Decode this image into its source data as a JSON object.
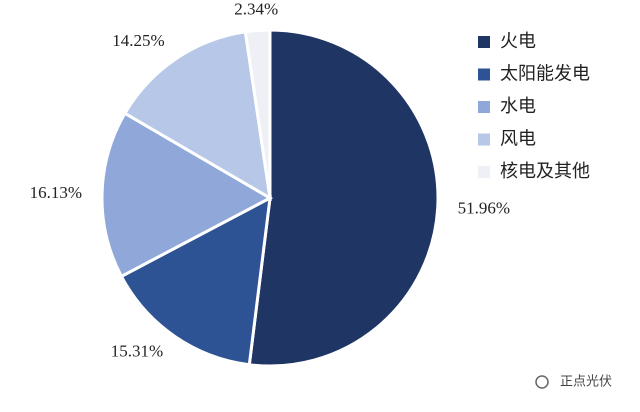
{
  "chart_data": {
    "type": "pie",
    "categories": [
      "火电",
      "太阳能发电",
      "水电",
      "风电",
      "核电及其他"
    ],
    "values": [
      51.96,
      15.31,
      16.13,
      14.25,
      2.34
    ],
    "value_labels": [
      "51.96%",
      "15.31%",
      "16.13%",
      "14.25%",
      "2.34%"
    ],
    "colors": [
      "#1f3564",
      "#2e5394",
      "#8fa8d9",
      "#b6c7e7",
      "#eef0f6"
    ],
    "legend": "right",
    "watermark": "正点光伏"
  }
}
